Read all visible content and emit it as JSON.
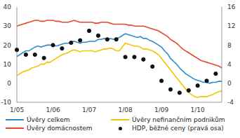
{
  "chart_data": {
    "type": "line",
    "categories": [
      "1/05",
      null,
      null,
      null,
      null,
      null,
      null,
      null,
      null,
      null,
      null,
      null,
      "1/06",
      null,
      null,
      null,
      null,
      null,
      null,
      null,
      null,
      null,
      null,
      null,
      "1/07",
      null,
      null,
      null,
      null,
      null,
      null,
      null,
      null,
      null,
      null,
      null,
      "1/08",
      null,
      null,
      null,
      null,
      null,
      null,
      null,
      null,
      null,
      null,
      null,
      "1/09",
      null,
      null,
      null,
      null,
      null,
      null,
      null,
      null,
      null,
      null,
      null,
      "1/10",
      null,
      null,
      null,
      null,
      null,
      null,
      null,
      null
    ],
    "ylim": [
      -10,
      40
    ],
    "yticks": [
      -10,
      0,
      10,
      20,
      30,
      40
    ],
    "y2lim": [
      -4,
      16
    ],
    "y2ticks": [
      -4,
      0,
      4,
      8,
      12,
      16
    ],
    "grid": false,
    "series": [
      {
        "name": "Úvěry celkem",
        "color": "#2b8ccc",
        "type": "line",
        "values": [
          14,
          15,
          16,
          17,
          17,
          18,
          19,
          19.5,
          19,
          19.5,
          20,
          20,
          20,
          19.5,
          20,
          20.5,
          21,
          21,
          21.5,
          22,
          21.5,
          21,
          21.5,
          21.5,
          22,
          22,
          22,
          23,
          23,
          23.5,
          23,
          23.5,
          23,
          23.5,
          24,
          25,
          26,
          25.5,
          25,
          24.5,
          24,
          24.5,
          23.5,
          23.5,
          22.5,
          22,
          21,
          20,
          19,
          17,
          15.5,
          13,
          11.5,
          10,
          8,
          6.5,
          5,
          4,
          3,
          2,
          1.5,
          1,
          0.5,
          0.5,
          0,
          0.5,
          0.5,
          1,
          1
        ]
      },
      {
        "name": "Úvěry nefinančním podnikům",
        "color": "#f2c500",
        "type": "line",
        "values": [
          4,
          5,
          6,
          6.5,
          7,
          8,
          8.5,
          9,
          10,
          10,
          11,
          11,
          12,
          13,
          14,
          15,
          15.5,
          16,
          17,
          17.5,
          17,
          16.5,
          17,
          17,
          17,
          17,
          16.5,
          17,
          17.5,
          18,
          18,
          18.5,
          18,
          17,
          17,
          19,
          21,
          20.5,
          20,
          19.5,
          19.5,
          19,
          18,
          18,
          17.5,
          17,
          16,
          15,
          13,
          11,
          9,
          7,
          5,
          3,
          1,
          -1,
          -3,
          -5,
          -6,
          -7,
          -7.5,
          -7,
          -7,
          -7,
          -6.5,
          -6,
          -5,
          -4.5,
          -4
        ]
      },
      {
        "name": "Úvěry domácnostem",
        "color": "#e8462e",
        "type": "line",
        "values": [
          30,
          30.5,
          31,
          31.5,
          32,
          32.5,
          33,
          33,
          32.5,
          32.5,
          33,
          33,
          33,
          32.5,
          32.5,
          32,
          32,
          32,
          32.5,
          33,
          32.5,
          32,
          32,
          32,
          32,
          32,
          31.5,
          31.5,
          32,
          32,
          32,
          31.5,
          31,
          31,
          31,
          31,
          31,
          30.5,
          30.5,
          30,
          30,
          30,
          30,
          29.5,
          29,
          28.5,
          28,
          27.5,
          26.5,
          25.5,
          24.5,
          23,
          22,
          21,
          19.5,
          18,
          17,
          16,
          15,
          14,
          13,
          12,
          11.5,
          11,
          10.5,
          10,
          9.5,
          9,
          8
        ]
      },
      {
        "name": "HDP, běžné ceny (pravá osa)",
        "color": "#111111",
        "type": "scatter",
        "axis": "y2",
        "marker": "circle",
        "values": [
          7,
          null,
          null,
          6,
          null,
          null,
          6,
          null,
          null,
          5.3,
          null,
          null,
          8,
          null,
          null,
          7.3,
          null,
          null,
          8.5,
          null,
          null,
          9,
          null,
          null,
          11,
          null,
          null,
          10,
          null,
          null,
          9.2,
          null,
          null,
          9.2,
          null,
          null,
          5.5,
          null,
          null,
          5.5,
          null,
          null,
          5,
          null,
          null,
          3.5,
          null,
          null,
          0.5,
          null,
          null,
          -1.3,
          null,
          null,
          -2,
          null,
          null,
          -1.5,
          null,
          null,
          -0.5,
          null,
          null,
          0.5,
          null,
          null,
          2,
          null,
          null
        ]
      }
    ]
  }
}
